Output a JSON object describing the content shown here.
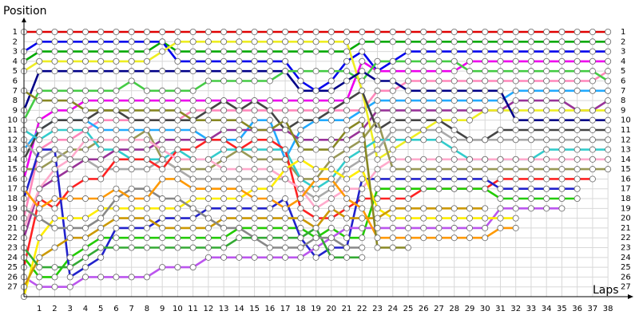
{
  "chart_data": {
    "type": "lapchart",
    "y_label": "Position",
    "x_label": "Laps",
    "x": [
      0,
      1,
      2,
      3,
      4,
      5,
      6,
      7,
      8,
      9,
      10,
      11,
      12,
      13,
      14,
      15,
      16,
      17,
      18,
      19,
      20,
      21,
      22,
      23,
      24,
      25,
      26,
      27,
      28,
      29,
      30,
      31,
      32,
      33,
      34,
      35,
      36,
      37,
      38
    ],
    "xlim": [
      0,
      39.5
    ],
    "xticks": [
      1,
      2,
      3,
      4,
      5,
      6,
      7,
      8,
      9,
      10,
      11,
      12,
      13,
      14,
      15,
      16,
      17,
      18,
      19,
      20,
      21,
      22,
      23,
      24,
      25,
      26,
      27,
      28,
      29,
      30,
      31,
      32,
      33,
      34,
      35,
      36,
      37,
      38
    ],
    "ylim": [
      28,
      0
    ],
    "yticks": [
      1,
      2,
      3,
      4,
      5,
      6,
      7,
      8,
      9,
      10,
      11,
      12,
      13,
      14,
      15,
      16,
      17,
      18,
      19,
      20,
      21,
      22,
      23,
      24,
      25,
      26,
      27
    ],
    "grid": true,
    "series": [
      {
        "color": "#e00000",
        "values": [
          1,
          1,
          1,
          1,
          1,
          1,
          1,
          1,
          1,
          1,
          1,
          1,
          1,
          1,
          1,
          1,
          1,
          1,
          1,
          1,
          1,
          1,
          1,
          1,
          1,
          1,
          1,
          1,
          1,
          1,
          1,
          1,
          1,
          1,
          1,
          1,
          1,
          1,
          1
        ]
      },
      {
        "color": "#00aa00",
        "values": [
          4,
          3,
          3,
          3,
          3,
          3,
          3,
          3,
          3,
          2,
          3,
          3,
          3,
          3,
          3,
          3,
          3,
          3,
          3,
          3,
          3,
          3,
          2,
          2,
          2,
          2,
          2,
          2,
          2,
          2,
          2,
          2,
          2,
          2,
          2,
          2,
          2,
          2,
          2
        ]
      },
      {
        "color": "#0000ee",
        "values": [
          3,
          2,
          2,
          2,
          2,
          2,
          2,
          2,
          2,
          2,
          4,
          4,
          4,
          4,
          4,
          4,
          4,
          4,
          6,
          7,
          6,
          4,
          3,
          5,
          4,
          3,
          3,
          3,
          3,
          3,
          3,
          3,
          3,
          3,
          3,
          3,
          3,
          3,
          3
        ]
      },
      {
        "color": "#ee00ee",
        "values": [
          16,
          10,
          9,
          9,
          8,
          8,
          8,
          8,
          8,
          8,
          8,
          8,
          8,
          8,
          8,
          8,
          8,
          8,
          8,
          8,
          8,
          8,
          4,
          5,
          5,
          5,
          5,
          5,
          5,
          4,
          4,
          4,
          4,
          4,
          4,
          4,
          4,
          4,
          4
        ]
      },
      {
        "color": "#ff88bb",
        "values": [
          20,
          13,
          12,
          12,
          11,
          10,
          10,
          10,
          10,
          10,
          10,
          9,
          9,
          9,
          9,
          9,
          9,
          9,
          9,
          9,
          9,
          9,
          9,
          7,
          7,
          6,
          6,
          6,
          6,
          6,
          6,
          6,
          6,
          6,
          6,
          6,
          6,
          6,
          5
        ]
      },
      {
        "color": "#44cc44",
        "values": [
          10,
          7,
          7,
          7,
          7,
          7,
          7,
          6,
          7,
          7,
          7,
          7,
          6,
          6,
          6,
          6,
          6,
          5,
          5,
          5,
          5,
          5,
          6,
          4,
          4,
          4,
          4,
          4,
          4,
          5,
          5,
          5,
          5,
          5,
          5,
          5,
          5,
          5,
          6
        ]
      },
      {
        "color": "#22aaff",
        "values": [
          13,
          11,
          10,
          10,
          10,
          11,
          11,
          11,
          11,
          11,
          11,
          11,
          12,
          12,
          12,
          10,
          10,
          14,
          11,
          10,
          10,
          10,
          9,
          8,
          8,
          8,
          8,
          8,
          8,
          8,
          8,
          8,
          7,
          7,
          7,
          7,
          7,
          7,
          7
        ]
      },
      {
        "color": "#993399",
        "values": [
          22,
          17,
          16,
          15,
          14,
          14,
          13,
          13,
          13,
          12,
          12,
          12,
          12,
          11,
          11,
          11,
          11,
          11,
          12,
          12,
          12,
          12,
          11,
          9,
          9,
          9,
          9,
          9,
          9,
          9,
          9,
          9,
          8,
          8,
          8,
          8,
          9,
          9,
          8
        ]
      },
      {
        "color": "#eeee22",
        "values": [
          5,
          4,
          4,
          4,
          4,
          4,
          4,
          4,
          4,
          3,
          2,
          2,
          2,
          2,
          2,
          2,
          2,
          2,
          2,
          2,
          2,
          2,
          7,
          14,
          13,
          12,
          11,
          10,
          10,
          10,
          9,
          9,
          9,
          9,
          9,
          9,
          9,
          9,
          9
        ]
      },
      {
        "color": "#000088",
        "values": [
          9,
          5,
          5,
          5,
          5,
          5,
          5,
          5,
          5,
          5,
          5,
          5,
          5,
          5,
          5,
          5,
          5,
          5,
          7,
          7,
          7,
          6,
          5,
          6,
          6,
          7,
          7,
          7,
          7,
          7,
          7,
          7,
          10,
          10,
          10,
          10,
          10,
          10,
          10
        ]
      },
      {
        "color": "#444444",
        "values": [
          14,
          11,
          10,
          10,
          10,
          9,
          9,
          10,
          10,
          10,
          10,
          10,
          9,
          8,
          9,
          8,
          9,
          11,
          10,
          10,
          9,
          8,
          7,
          11,
          10,
          10,
          10,
          10,
          11,
          12,
          12,
          11,
          11,
          11,
          11,
          11,
          11,
          11,
          11
        ]
      },
      {
        "color": "#999955",
        "values": [
          15,
          15,
          14,
          13,
          13,
          12,
          12,
          12,
          11,
          14,
          15,
          15,
          15,
          14,
          13,
          14,
          14,
          14,
          16,
          16,
          14,
          13,
          12,
          10,
          15,
          15,
          15,
          15,
          15,
          15,
          15,
          15,
          15,
          15,
          15,
          15,
          15,
          15,
          15
        ]
      },
      {
        "color": "#33cccc",
        "values": [
          11,
          12,
          11,
          11,
          11,
          13,
          13,
          14,
          14,
          14,
          13,
          14,
          14,
          13,
          13,
          13,
          13,
          13,
          16,
          17,
          16,
          14,
          13,
          12,
          12,
          12,
          12,
          12,
          13,
          14,
          14,
          14,
          14,
          14,
          13,
          13,
          13,
          13,
          13
        ]
      },
      {
        "color": "#aaaaaa",
        "values": [
          12,
          14,
          13,
          14,
          14,
          15,
          15,
          15,
          15,
          14,
          15,
          16,
          16,
          16,
          16,
          16,
          16,
          16,
          17,
          18,
          17,
          15,
          14,
          13,
          11,
          11,
          11,
          11,
          12,
          12,
          12,
          12,
          12,
          12,
          12,
          12,
          12,
          12,
          12
        ]
      },
      {
        "color": "#ff2222",
        "values": [
          25,
          18,
          19,
          17,
          16,
          16,
          14,
          14,
          14,
          15,
          13,
          13,
          12,
          12,
          13,
          12,
          12,
          13,
          19,
          20,
          20,
          19,
          18,
          18,
          18,
          18,
          17,
          17,
          17,
          17,
          17,
          16,
          16,
          16,
          16,
          16,
          16,
          16,
          null
        ]
      },
      {
        "color": "#22cc00",
        "values": [
          24,
          26,
          26,
          24,
          23,
          22,
          22,
          22,
          22,
          22,
          22,
          22,
          22,
          22,
          21,
          21,
          21,
          21,
          21,
          22,
          21,
          22,
          22,
          17,
          17,
          17,
          17,
          17,
          17,
          17,
          17,
          18,
          18,
          18,
          18,
          18,
          18,
          null,
          null
        ]
      },
      {
        "color": "#2222cc",
        "values": [
          18,
          13,
          13,
          26,
          25,
          24,
          21,
          21,
          21,
          20,
          20,
          20,
          19,
          19,
          19,
          19,
          19,
          18,
          22,
          24,
          23,
          23,
          16,
          16,
          16,
          16,
          16,
          16,
          16,
          16,
          16,
          17,
          17,
          17,
          17,
          17,
          17,
          null,
          null
        ]
      },
      {
        "color": "#bb55ee",
        "values": [
          26,
          27,
          27,
          27,
          26,
          26,
          26,
          26,
          26,
          25,
          25,
          25,
          24,
          24,
          24,
          24,
          24,
          24,
          24,
          23,
          22,
          21,
          21,
          21,
          21,
          21,
          21,
          21,
          21,
          21,
          21,
          19,
          19,
          19,
          19,
          19,
          null,
          null,
          null
        ]
      },
      {
        "color": "#ffaacc",
        "values": [
          21,
          17,
          15,
          14,
          12,
          12,
          12,
          12,
          12,
          13,
          14,
          14,
          14,
          15,
          15,
          15,
          15,
          16,
          17,
          19,
          18,
          17,
          17,
          15,
          14,
          14,
          14,
          14,
          14,
          14,
          14,
          14,
          14,
          14,
          14,
          14,
          14,
          14,
          14
        ]
      },
      {
        "color": "#ffee00",
        "values": [
          28,
          22,
          20,
          20,
          20,
          19,
          19,
          19,
          19,
          19,
          19,
          18,
          18,
          18,
          18,
          17,
          17,
          15,
          14,
          15,
          15,
          16,
          15,
          19,
          20,
          20,
          20,
          20,
          20,
          20,
          20,
          20,
          20,
          null,
          null,
          null,
          null,
          null,
          null
        ]
      },
      {
        "color": "#cc9900",
        "values": [
          27,
          24,
          23,
          22,
          22,
          21,
          20,
          20,
          20,
          21,
          21,
          21,
          21,
          20,
          20,
          20,
          20,
          20,
          20,
          21,
          19,
          20,
          20,
          20,
          19,
          19,
          19,
          19,
          19,
          19,
          19,
          null,
          null,
          null,
          null,
          null,
          null,
          null,
          null
        ]
      },
      {
        "color": "#33aa33",
        "values": [
          23,
          25,
          25,
          25,
          24,
          23,
          23,
          23,
          23,
          23,
          23,
          23,
          23,
          23,
          22,
          22,
          22,
          22,
          22,
          21,
          24,
          24,
          24,
          null,
          null,
          null,
          null,
          null,
          null,
          null,
          null,
          null,
          null,
          null,
          null,
          null,
          null,
          null,
          null
        ]
      },
      {
        "color": "#888888",
        "values": [
          19,
          20,
          21,
          21,
          21,
          20,
          18,
          17,
          17,
          18,
          18,
          19,
          20,
          21,
          21,
          22,
          23,
          23,
          23,
          22,
          22,
          23,
          23,
          null,
          null,
          null,
          null,
          null,
          null,
          null,
          null,
          null,
          null,
          null,
          null,
          null,
          null,
          null,
          null
        ]
      },
      {
        "color": "#ff9900",
        "values": [
          17,
          19,
          18,
          18,
          18,
          18,
          17,
          18,
          18,
          16,
          16,
          17,
          17,
          17,
          17,
          18,
          18,
          19,
          18,
          16,
          16,
          18,
          19,
          22,
          22,
          22,
          22,
          22,
          22,
          22,
          22,
          21,
          21,
          null,
          null,
          null,
          null,
          null,
          null
        ]
      },
      {
        "color": "#888822",
        "values": [
          7,
          8,
          8,
          8,
          9,
          9,
          9,
          9,
          9,
          9,
          9,
          10,
          10,
          10,
          10,
          11,
          11,
          10,
          13,
          13,
          13,
          11,
          10,
          23,
          23,
          23,
          null,
          null,
          null,
          null,
          null,
          null,
          null,
          null,
          null,
          null,
          null,
          null,
          null
        ]
      }
    ]
  }
}
